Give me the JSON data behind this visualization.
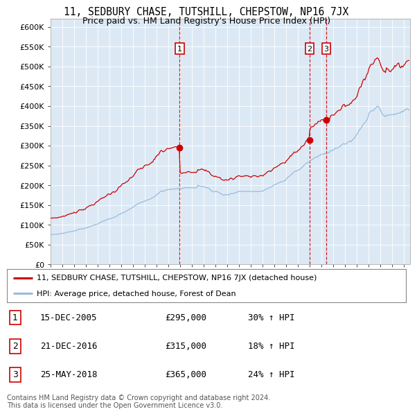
{
  "title": "11, SEDBURY CHASE, TUTSHILL, CHEPSTOW, NP16 7JX",
  "subtitle": "Price paid vs. HM Land Registry's House Price Index (HPI)",
  "ylim": [
    0,
    620000
  ],
  "yticks": [
    0,
    50000,
    100000,
    150000,
    200000,
    250000,
    300000,
    350000,
    400000,
    450000,
    500000,
    550000,
    600000
  ],
  "background_color": "#dce9f5",
  "line_color_red": "#cc0000",
  "line_color_blue": "#99bbdd",
  "vline_color": "#cc0000",
  "marker_color": "#cc0000",
  "purchase_prices": [
    295000,
    315000,
    365000
  ],
  "purchase_labels": [
    "1",
    "2",
    "3"
  ],
  "legend_label_red": "11, SEDBURY CHASE, TUTSHILL, CHEPSTOW, NP16 7JX (detached house)",
  "legend_label_blue": "HPI: Average price, detached house, Forest of Dean",
  "table_data": [
    [
      "1",
      "15-DEC-2005",
      "£295,000",
      "30% ↑ HPI"
    ],
    [
      "2",
      "21-DEC-2016",
      "£315,000",
      "18% ↑ HPI"
    ],
    [
      "3",
      "25-MAY-2018",
      "£365,000",
      "24% ↑ HPI"
    ]
  ],
  "footnote": "Contains HM Land Registry data © Crown copyright and database right 2024.\nThis data is licensed under the Open Government Licence v3.0.",
  "xlim_start": 1995.0,
  "xlim_end": 2025.5,
  "p1_year": 2005.958,
  "p2_year": 2016.975,
  "p3_year": 2018.4
}
